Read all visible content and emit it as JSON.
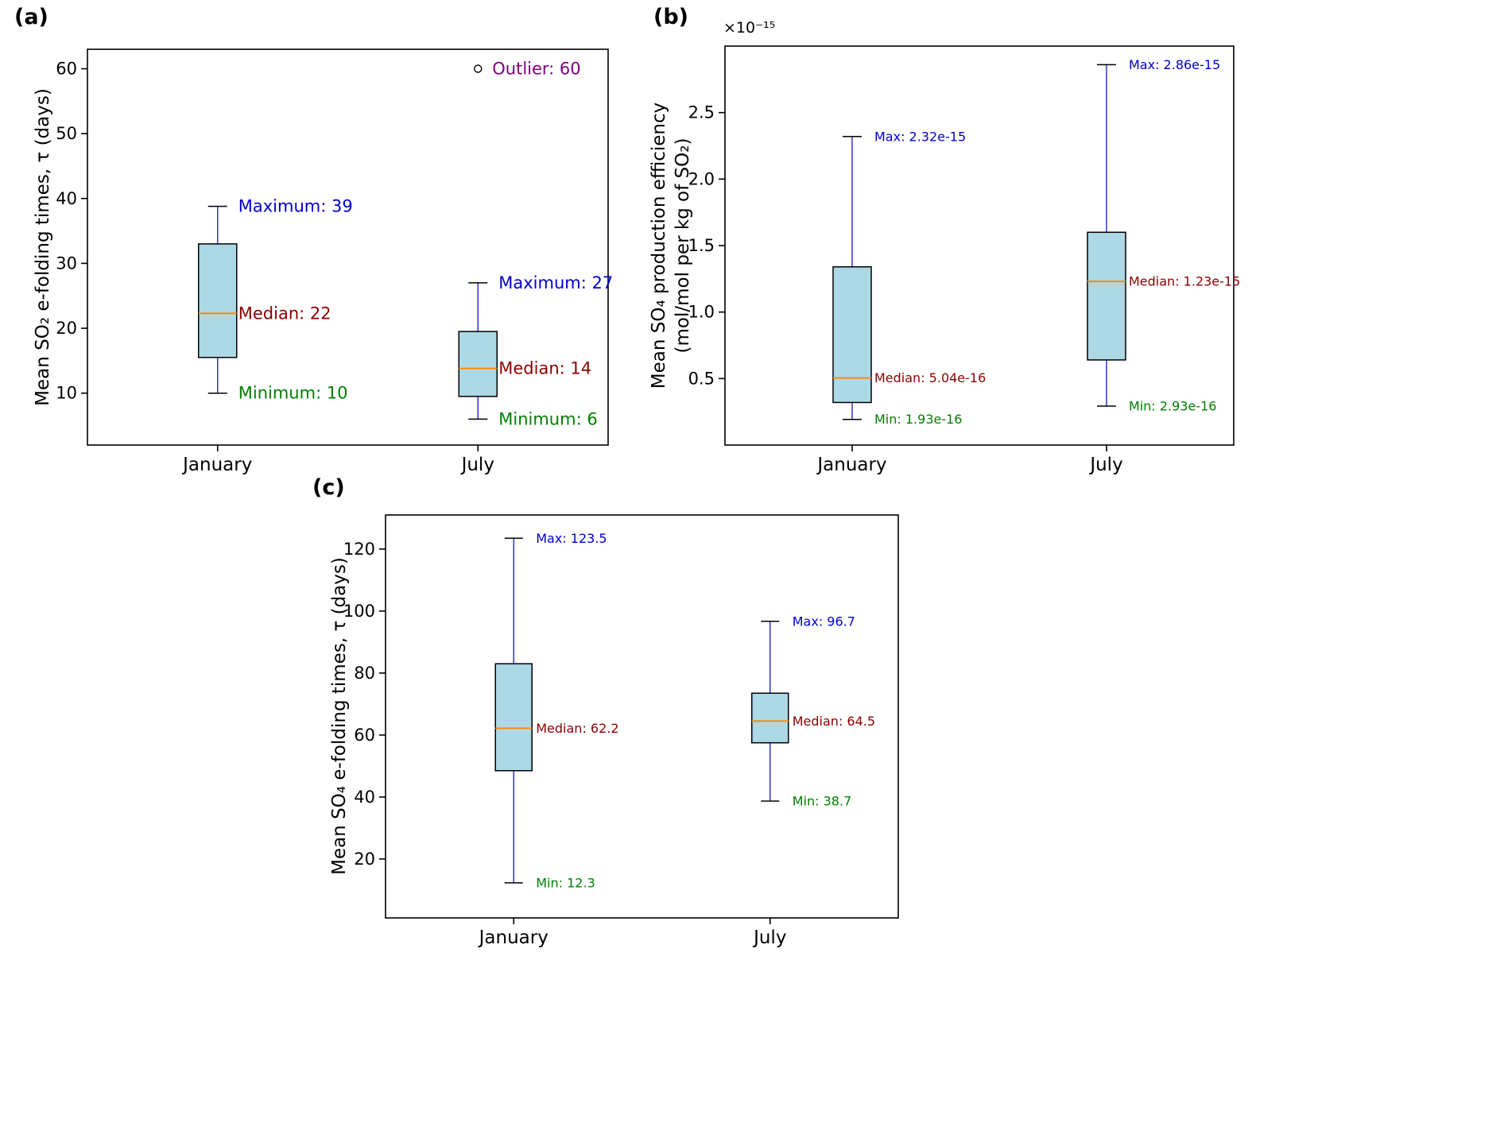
{
  "figure": {
    "background": "#ffffff"
  },
  "styles": {
    "box_fill": "#add8e6",
    "box_edge": "#000000",
    "median_color": "#ff8c00",
    "whisker_color": "#3333cc",
    "cap_color": "#000000",
    "axis_color": "#000000",
    "tick_label_color": "#000000",
    "max_label_color": "#0000cc",
    "median_label_color": "#8b0000",
    "min_label_color": "#008000",
    "outlier_label_color": "#800080"
  },
  "chart_data": [
    {
      "type": "box",
      "panel_label": "(a)",
      "ylabel_lines": [
        "Mean SO₂ e-folding times, τ (days)"
      ],
      "offset_text": "",
      "categories": [
        "January",
        "July"
      ],
      "yticks": [
        10,
        20,
        30,
        40,
        50,
        60
      ],
      "ytick_labels": [
        "10",
        "20",
        "30",
        "40",
        "50",
        "60"
      ],
      "ylim": [
        2,
        63
      ],
      "grid": false,
      "legend": false,
      "series": [
        {
          "name": "January",
          "min": 10,
          "q1": 15.5,
          "median": 22.3,
          "q3": 33,
          "max": 38.8,
          "outliers": []
        },
        {
          "name": "July",
          "min": 6,
          "q1": 9.5,
          "median": 13.8,
          "q3": 19.5,
          "max": 27,
          "outliers": [
            60
          ]
        }
      ],
      "annotations": [
        {
          "series": 0,
          "value": 38.8,
          "text": "Maximum: 39",
          "color": "#0000cc"
        },
        {
          "series": 0,
          "value": 22.3,
          "text": "Median: 22",
          "color": "#8b0000"
        },
        {
          "series": 0,
          "value": 10,
          "text": "Minimum: 10",
          "color": "#008000"
        },
        {
          "series": 1,
          "value": 27,
          "text": "Maximum: 27",
          "color": "#0000cc"
        },
        {
          "series": 1,
          "value": 13.8,
          "text": "Median: 14",
          "color": "#8b0000"
        },
        {
          "series": 1,
          "value": 6,
          "text": "Minimum: 6",
          "color": "#008000"
        },
        {
          "series": 1,
          "value": 60,
          "text": "Outlier: 60",
          "color": "#800080",
          "offset": 18
        }
      ]
    },
    {
      "type": "box",
      "panel_label": "(b)",
      "ylabel_lines": [
        "Mean SO₄ production efficiency",
        "(mol/mol per kg of SO₂)"
      ],
      "offset_text": "×10⁻¹⁵",
      "categories": [
        "January",
        "July"
      ],
      "yticks": [
        0.5,
        1.0,
        1.5,
        2.0,
        2.5
      ],
      "ytick_labels": [
        "0.5",
        "1.0",
        "1.5",
        "2.0",
        "2.5"
      ],
      "ylim": [
        0.0,
        3.0
      ],
      "grid": false,
      "legend": false,
      "series": [
        {
          "name": "January",
          "min": 0.193,
          "q1": 0.32,
          "median": 0.504,
          "q3": 1.34,
          "max": 2.32,
          "outliers": []
        },
        {
          "name": "July",
          "min": 0.293,
          "q1": 0.64,
          "median": 1.23,
          "q3": 1.6,
          "max": 2.86,
          "outliers": []
        }
      ],
      "annotations": [
        {
          "series": 0,
          "value": 2.32,
          "text": "Max: 2.32e-15",
          "color": "#0000cc"
        },
        {
          "series": 0,
          "value": 0.504,
          "text": "Median: 5.04e-16",
          "color": "#8b0000"
        },
        {
          "series": 0,
          "value": 0.193,
          "text": "Min: 1.93e-16",
          "color": "#008000"
        },
        {
          "series": 1,
          "value": 2.86,
          "text": "Max: 2.86e-15",
          "color": "#0000cc"
        },
        {
          "series": 1,
          "value": 1.23,
          "text": "Median: 1.23e-15",
          "color": "#8b0000"
        },
        {
          "series": 1,
          "value": 0.293,
          "text": "Min: 2.93e-16",
          "color": "#008000"
        }
      ]
    },
    {
      "type": "box",
      "panel_label": "(c)",
      "ylabel_lines": [
        "Mean SO₄ e-folding times, τ (days)"
      ],
      "offset_text": "",
      "categories": [
        "January",
        "July"
      ],
      "yticks": [
        20,
        40,
        60,
        80,
        100,
        120
      ],
      "ytick_labels": [
        "20",
        "40",
        "60",
        "80",
        "100",
        "120"
      ],
      "ylim": [
        1,
        131
      ],
      "grid": false,
      "legend": false,
      "series": [
        {
          "name": "January",
          "min": 12.3,
          "q1": 48.5,
          "median": 62.2,
          "q3": 83,
          "max": 123.5,
          "outliers": []
        },
        {
          "name": "July",
          "min": 38.7,
          "q1": 57.5,
          "median": 64.5,
          "q3": 73.5,
          "max": 96.7,
          "outliers": []
        }
      ],
      "annotations": [
        {
          "series": 0,
          "value": 123.5,
          "text": "Max: 123.5",
          "color": "#0000cc"
        },
        {
          "series": 0,
          "value": 62.2,
          "text": "Median: 62.2",
          "color": "#8b0000"
        },
        {
          "series": 0,
          "value": 12.3,
          "text": "Min: 12.3",
          "color": "#008000"
        },
        {
          "series": 1,
          "value": 96.7,
          "text": "Max: 96.7",
          "color": "#0000cc"
        },
        {
          "series": 1,
          "value": 64.5,
          "text": "Median: 64.5",
          "color": "#8b0000"
        },
        {
          "series": 1,
          "value": 38.7,
          "text": "Min: 38.7",
          "color": "#008000"
        }
      ]
    }
  ]
}
